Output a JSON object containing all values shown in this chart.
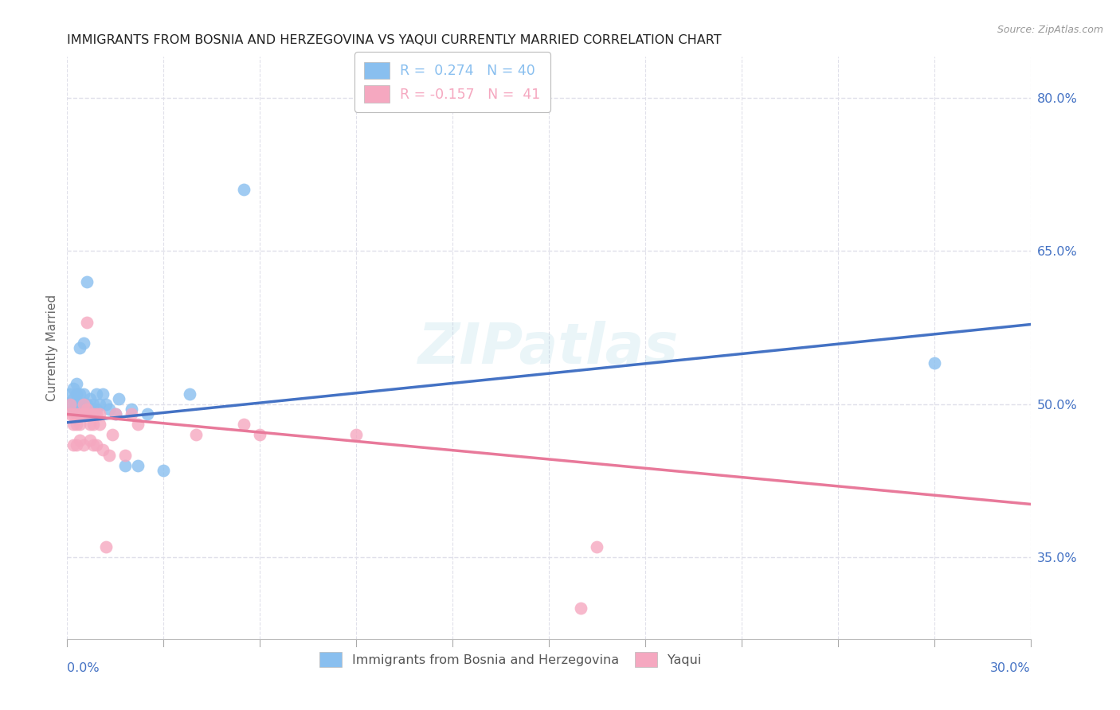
{
  "title": "IMMIGRANTS FROM BOSNIA AND HERZEGOVINA VS YAQUI CURRENTLY MARRIED CORRELATION CHART",
  "source": "Source: ZipAtlas.com",
  "ylabel": "Currently Married",
  "right_ytick_vals": [
    0.8,
    0.65,
    0.5,
    0.35
  ],
  "right_ytick_labels": [
    "80.0%",
    "65.0%",
    "50.0%",
    "35.0%"
  ],
  "xlim": [
    0.0,
    0.3
  ],
  "ylim": [
    0.27,
    0.84
  ],
  "watermark": "ZIPatlas",
  "legend_entries": [
    {
      "label": "R =  0.274   N = 40",
      "color": "#89bfef"
    },
    {
      "label": "R = -0.157   N =  41",
      "color": "#f5a8c0"
    }
  ],
  "bottom_legend": [
    {
      "label": "Immigrants from Bosnia and Herzegovina",
      "color": "#89bfef"
    },
    {
      "label": "Yaqui",
      "color": "#f5a8c0"
    }
  ],
  "blue_scatter_x": [
    0.001,
    0.001,
    0.002,
    0.002,
    0.002,
    0.003,
    0.003,
    0.003,
    0.003,
    0.004,
    0.004,
    0.004,
    0.004,
    0.005,
    0.005,
    0.005,
    0.005,
    0.006,
    0.006,
    0.006,
    0.007,
    0.007,
    0.008,
    0.008,
    0.009,
    0.009,
    0.01,
    0.011,
    0.012,
    0.013,
    0.015,
    0.016,
    0.018,
    0.02,
    0.022,
    0.025,
    0.03,
    0.038,
    0.055,
    0.27
  ],
  "blue_scatter_y": [
    0.5,
    0.51,
    0.495,
    0.505,
    0.515,
    0.49,
    0.5,
    0.51,
    0.52,
    0.49,
    0.5,
    0.51,
    0.555,
    0.49,
    0.5,
    0.51,
    0.56,
    0.495,
    0.5,
    0.62,
    0.49,
    0.505,
    0.495,
    0.5,
    0.495,
    0.51,
    0.5,
    0.51,
    0.5,
    0.495,
    0.49,
    0.505,
    0.44,
    0.495,
    0.44,
    0.49,
    0.435,
    0.51,
    0.71,
    0.54
  ],
  "pink_scatter_x": [
    0.001,
    0.001,
    0.002,
    0.002,
    0.002,
    0.003,
    0.003,
    0.003,
    0.004,
    0.004,
    0.004,
    0.005,
    0.005,
    0.005,
    0.006,
    0.006,
    0.006,
    0.007,
    0.007,
    0.007,
    0.008,
    0.008,
    0.008,
    0.009,
    0.009,
    0.01,
    0.01,
    0.011,
    0.012,
    0.013,
    0.014,
    0.015,
    0.018,
    0.02,
    0.022,
    0.04,
    0.055,
    0.06,
    0.09,
    0.16,
    0.165
  ],
  "pink_scatter_y": [
    0.49,
    0.5,
    0.46,
    0.48,
    0.49,
    0.46,
    0.48,
    0.49,
    0.465,
    0.48,
    0.49,
    0.46,
    0.49,
    0.5,
    0.49,
    0.495,
    0.58,
    0.465,
    0.48,
    0.49,
    0.46,
    0.48,
    0.49,
    0.46,
    0.49,
    0.48,
    0.49,
    0.455,
    0.36,
    0.45,
    0.47,
    0.49,
    0.45,
    0.49,
    0.48,
    0.47,
    0.48,
    0.47,
    0.47,
    0.3,
    0.36
  ],
  "blue_line_x": [
    0.0,
    0.3
  ],
  "blue_line_y": [
    0.482,
    0.578
  ],
  "pink_line_x": [
    0.0,
    0.3
  ],
  "pink_line_y": [
    0.49,
    0.402
  ],
  "grid_color": "#e0e0ea",
  "blue_color": "#89bfef",
  "pink_color": "#f5a8c0",
  "blue_line_color": "#4472c4",
  "pink_line_color": "#e8799a",
  "title_fontsize": 11.5,
  "axis_label_fontsize": 11,
  "tick_fontsize": 11.5
}
